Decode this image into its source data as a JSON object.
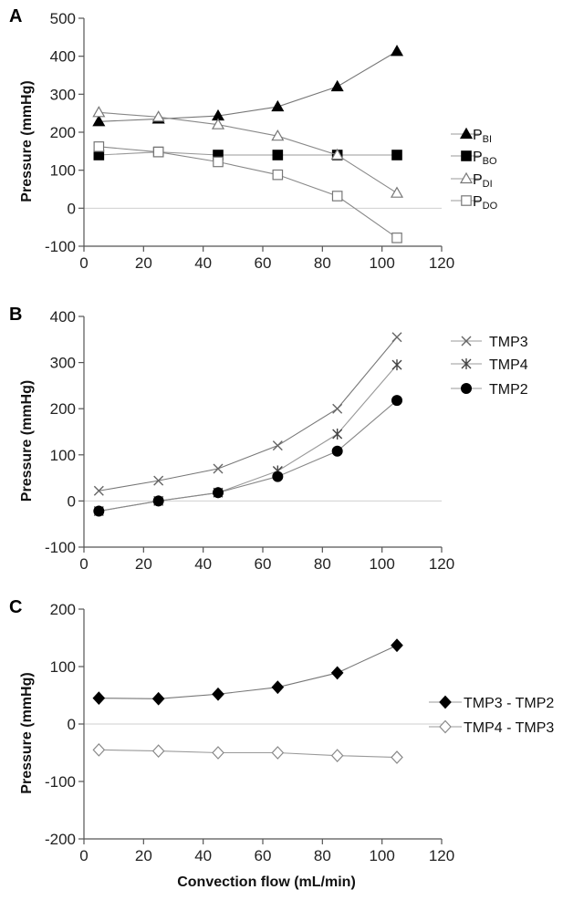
{
  "figure": {
    "xlabel": "Convection flow (mL/min)"
  },
  "chart_data": [
    {
      "panel": "A",
      "type": "line",
      "ylabel": "Pressure (mmHg)",
      "xlim": [
        0,
        120
      ],
      "ylim": [
        -100,
        500
      ],
      "xticks": [
        0,
        20,
        40,
        60,
        80,
        100,
        120
      ],
      "yticks": [
        -100,
        0,
        100,
        200,
        300,
        400,
        500
      ],
      "x": [
        5,
        25,
        45,
        65,
        85,
        105
      ],
      "legend_position": "right",
      "series": [
        {
          "name": "P",
          "sub": "BI",
          "marker": "triangle-filled",
          "values": [
            228,
            235,
            243,
            267,
            320,
            413
          ]
        },
        {
          "name": "P",
          "sub": "BO",
          "marker": "square-filled",
          "values": [
            140,
            148,
            140,
            140,
            140,
            140
          ]
        },
        {
          "name": "P",
          "sub": "DI",
          "marker": "triangle-open",
          "values": [
            252,
            240,
            220,
            190,
            140,
            40
          ]
        },
        {
          "name": "P",
          "sub": "DO",
          "marker": "square-open",
          "values": [
            162,
            148,
            122,
            88,
            32,
            -78
          ]
        }
      ]
    },
    {
      "panel": "B",
      "type": "line",
      "ylabel": "Pressure (mmHg)",
      "xlim": [
        0,
        120
      ],
      "ylim": [
        -100,
        400
      ],
      "xticks": [
        0,
        20,
        40,
        60,
        80,
        100,
        120
      ],
      "yticks": [
        -100,
        0,
        100,
        200,
        300,
        400
      ],
      "x": [
        5,
        25,
        45,
        65,
        85,
        105
      ],
      "legend_position": "right",
      "series": [
        {
          "name": "TMP3",
          "marker": "x",
          "values": [
            22,
            44,
            70,
            120,
            200,
            355
          ]
        },
        {
          "name": "TMP4",
          "marker": "star",
          "values": [
            -22,
            0,
            18,
            65,
            145,
            295
          ]
        },
        {
          "name": "TMP2",
          "marker": "circle-filled",
          "values": [
            -22,
            0,
            18,
            53,
            108,
            218
          ]
        }
      ]
    },
    {
      "panel": "C",
      "type": "line",
      "ylabel": "Pressure (mmHg)",
      "xlim": [
        0,
        120
      ],
      "ylim": [
        -200,
        200
      ],
      "xticks": [
        0,
        20,
        40,
        60,
        80,
        100,
        120
      ],
      "yticks": [
        -200,
        -100,
        0,
        100,
        200
      ],
      "x": [
        5,
        25,
        45,
        65,
        85,
        105
      ],
      "legend_position": "right",
      "series": [
        {
          "name": "TMP3 - TMP2",
          "marker": "diamond-filled",
          "values": [
            45,
            44,
            52,
            64,
            89,
            137
          ]
        },
        {
          "name": "TMP4 - TMP3",
          "marker": "diamond-open",
          "values": [
            -45,
            -47,
            -50,
            -50,
            -55,
            -58
          ]
        }
      ]
    }
  ]
}
